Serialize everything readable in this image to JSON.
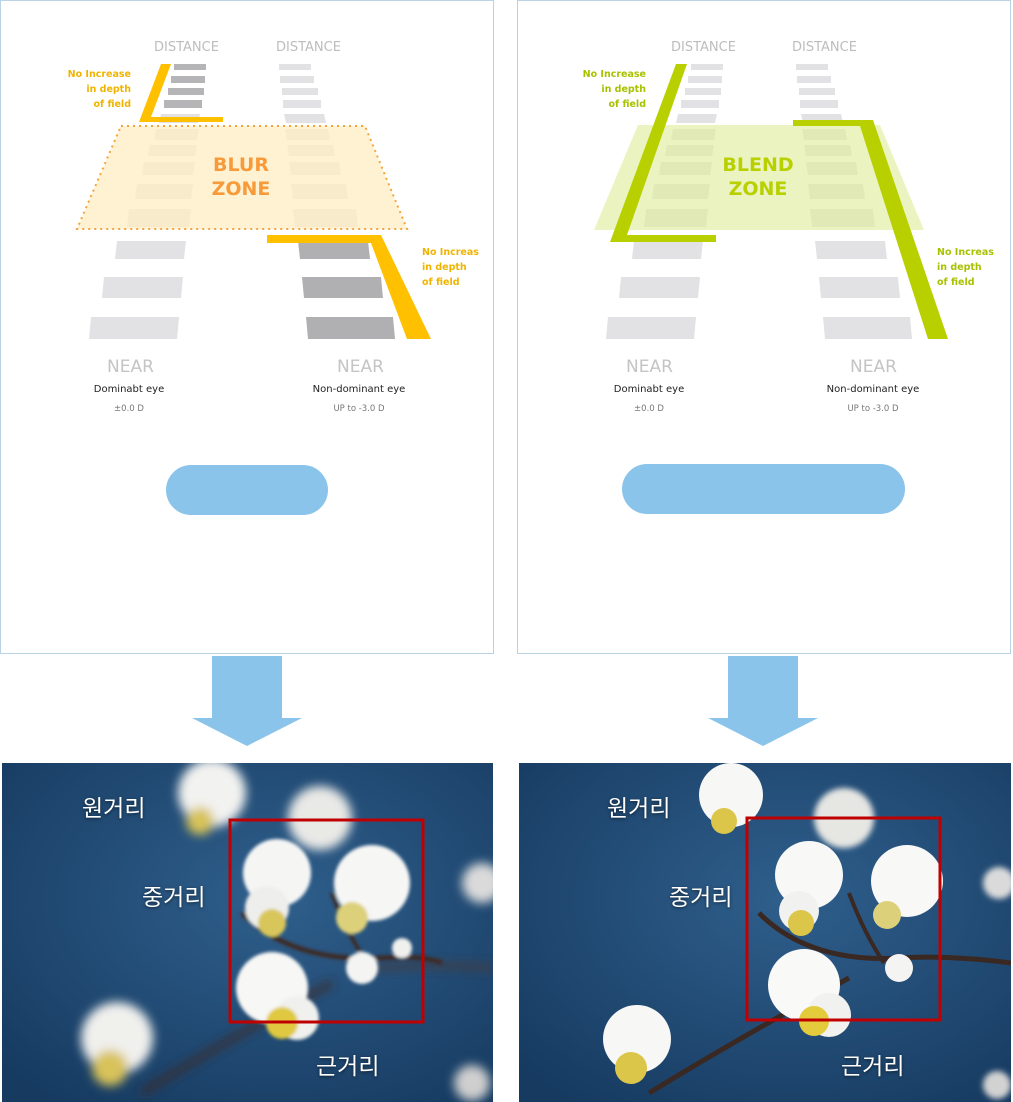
{
  "left_panel": {
    "distance_left": "DISTANCE",
    "distance_right": "DISTANCE",
    "zone_line1": "BLUR",
    "zone_line2": "ZONE",
    "note_top": [
      "No Increase",
      "in depth",
      "of field"
    ],
    "note_bottom": [
      "No Increas",
      "in depth",
      "of field"
    ],
    "near_left": "NEAR",
    "near_right": "NEAR",
    "eye_left": "Dominabt eye",
    "eye_right": "Non-dominant eye",
    "power_left": "±0.0 D",
    "power_right": "UP to -3.0 D",
    "accent_color": "#ffc000",
    "zone_text_color": "#f79a3a"
  },
  "right_panel": {
    "distance_left": "DISTANCE",
    "distance_right": "DISTANCE",
    "zone_line1": "BLEND",
    "zone_line2": "ZONE",
    "note_top": [
      "No Increase",
      "in depth",
      "of field"
    ],
    "note_bottom": [
      "No Increas",
      "in depth",
      "of field"
    ],
    "near_left": "NEAR",
    "near_right": "NEAR",
    "eye_left": "Dominabt eye",
    "eye_right": "Non-dominant eye",
    "power_left": "±0.0 D",
    "power_right": "UP to -3.0 D",
    "accent_color": "#b8d000",
    "zone_text_color": "#b8d000"
  },
  "photo_left": {
    "far": "원거리",
    "mid": "중거리",
    "near": "근거리"
  },
  "photo_right": {
    "far": "원거리",
    "mid": "중거리",
    "near": "근거리"
  },
  "colors": {
    "arrow": "#8ac4ea",
    "pill": "#8ac4ea",
    "frame": "#c00000",
    "photo_bg": "#1f4a75"
  }
}
